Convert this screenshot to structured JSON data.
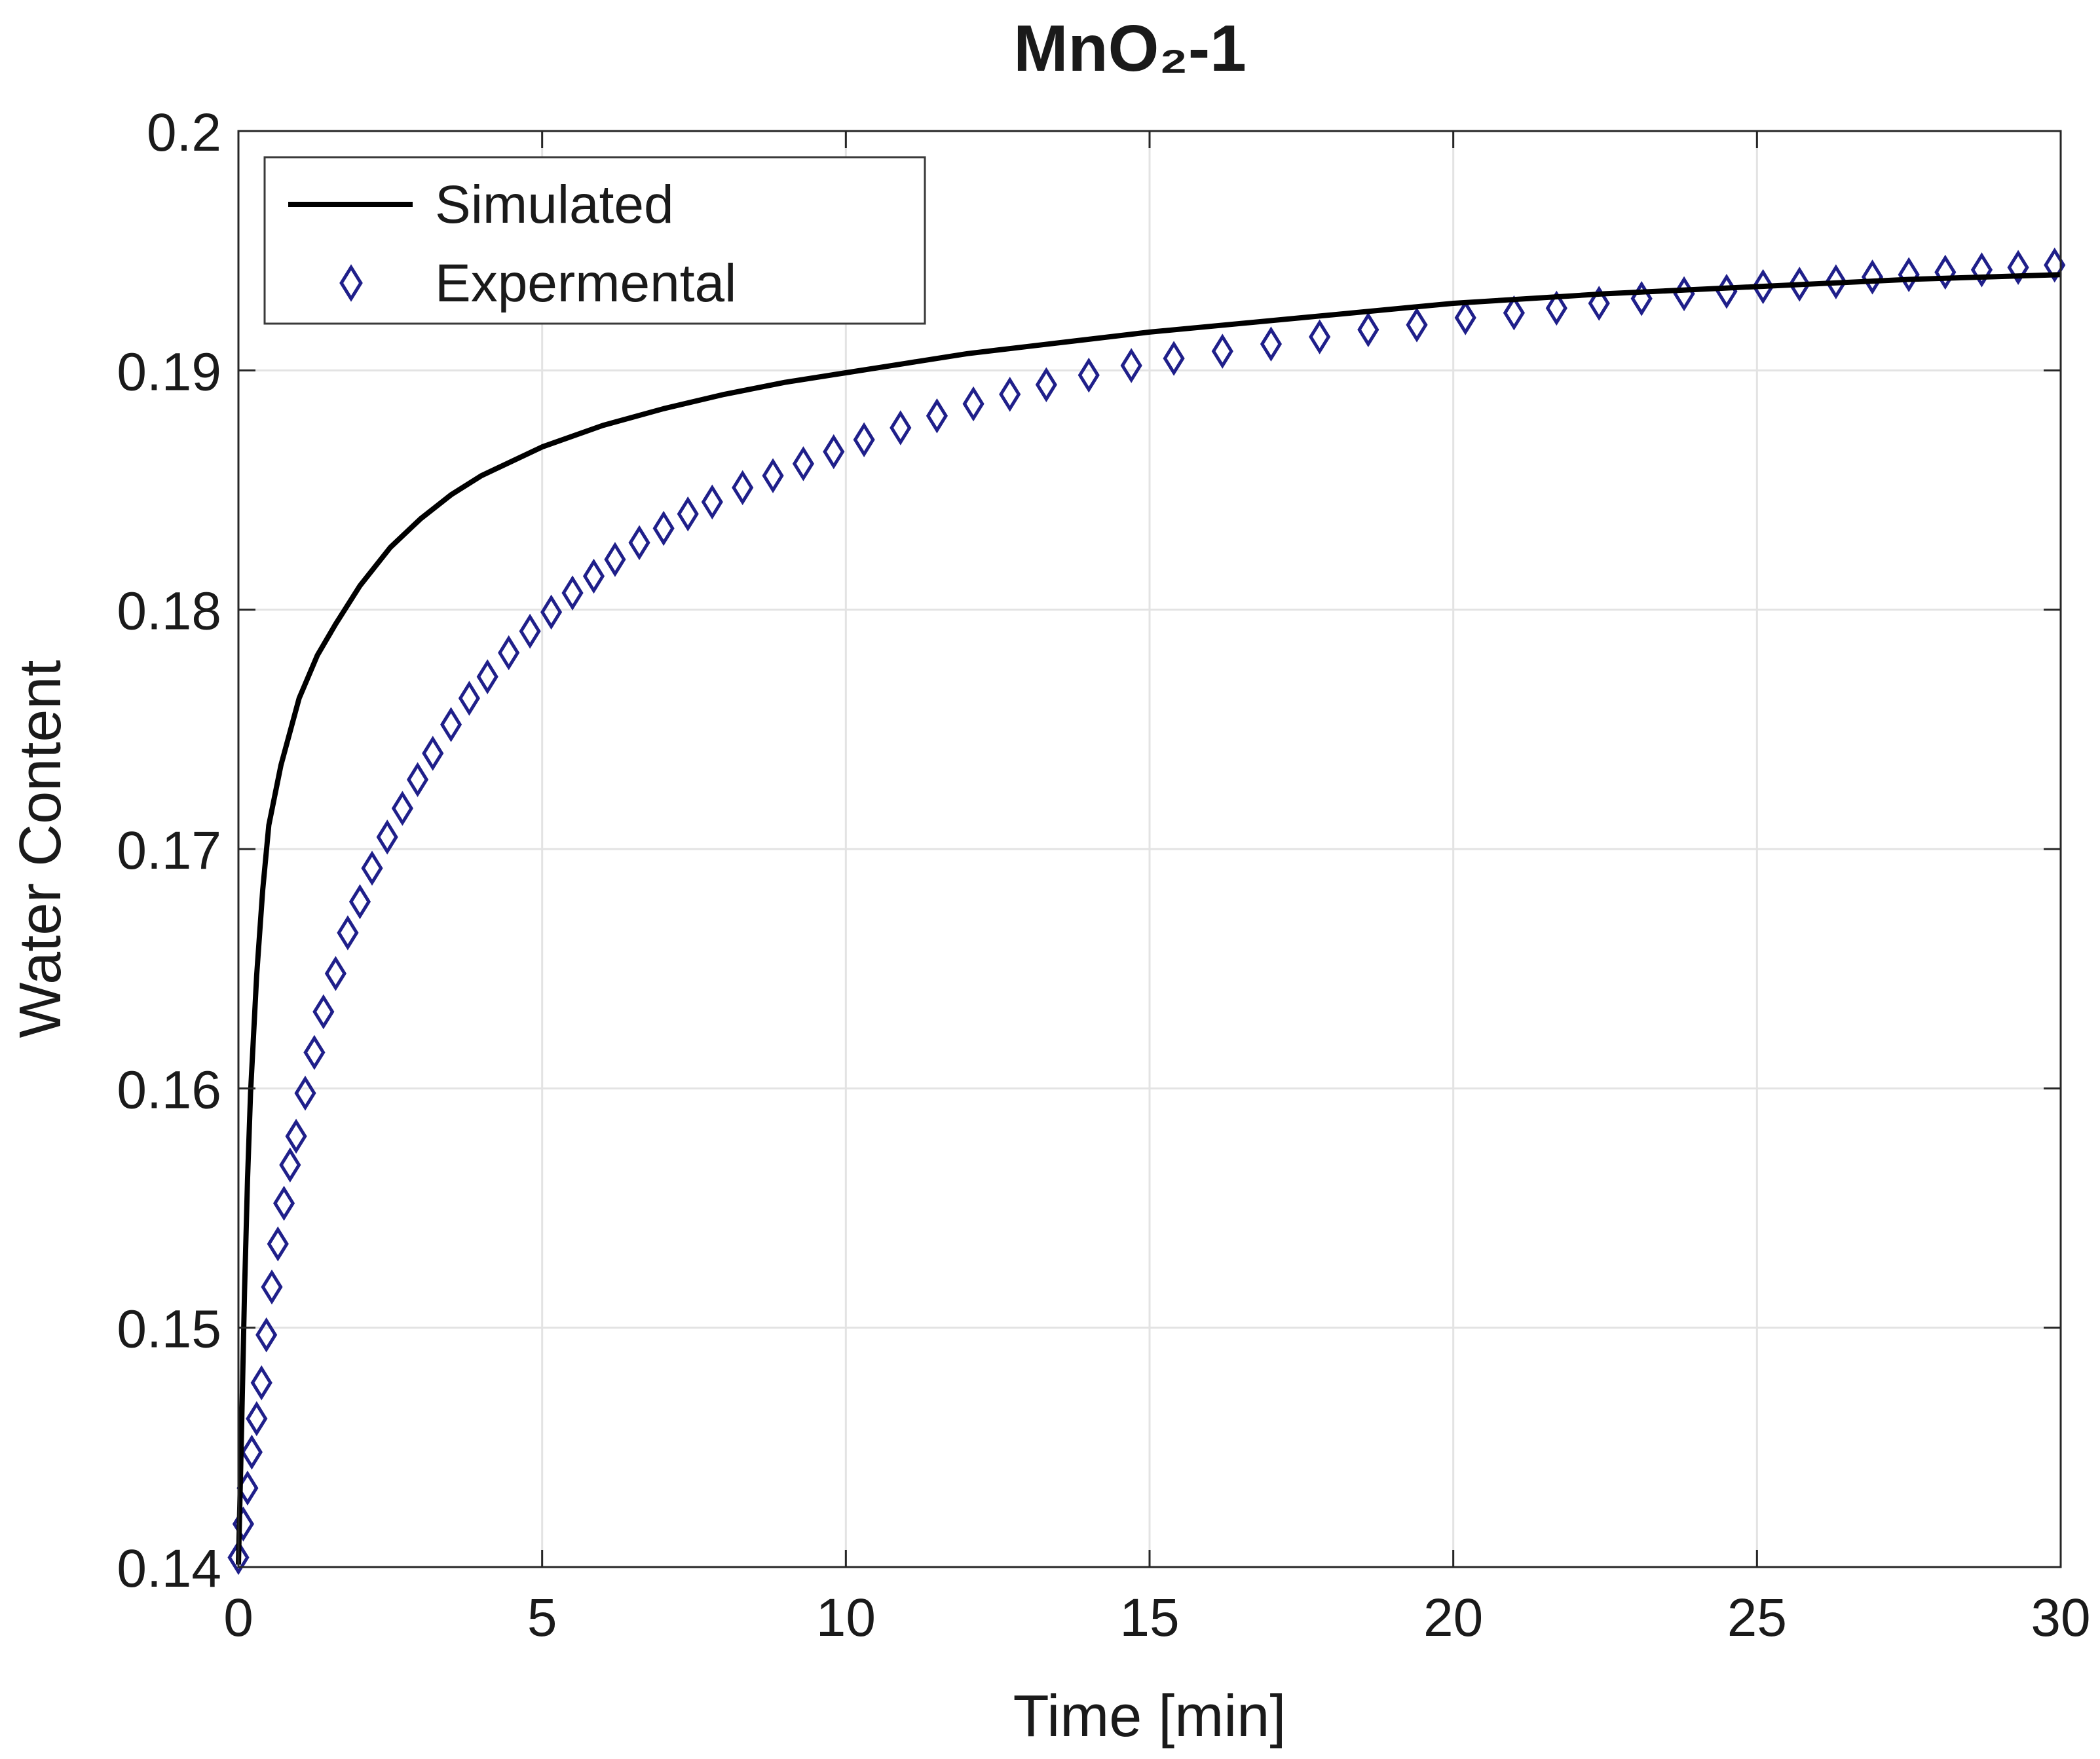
{
  "chart_data": {
    "type": "line",
    "title": "MnO₂-1",
    "xlabel": "Time [min]",
    "ylabel": "Water Content",
    "xlim": [
      0,
      30
    ],
    "ylim": [
      0.14,
      0.2
    ],
    "x_ticks": [
      "0",
      "5",
      "10",
      "15",
      "20",
      "25",
      "30"
    ],
    "y_ticks": [
      "0.14",
      "0.15",
      "0.16",
      "0.17",
      "0.18",
      "0.19",
      "0.2"
    ],
    "grid": true,
    "legend_position": "top-left",
    "series": [
      {
        "name": "Simulated",
        "style": "line",
        "color": "#000000",
        "x": [
          0,
          0.05,
          0.1,
          0.15,
          0.2,
          0.3,
          0.4,
          0.5,
          0.7,
          1.0,
          1.3,
          1.6,
          2.0,
          2.5,
          3.0,
          3.5,
          4.0,
          5.0,
          6.0,
          7.0,
          8.0,
          9.0,
          10.0,
          11.0,
          12.0,
          13.0,
          15.0,
          17.5,
          20.0,
          22.5,
          25.0,
          27.5,
          30.0
        ],
        "y": [
          0.1401,
          0.1455,
          0.1515,
          0.1562,
          0.1598,
          0.1647,
          0.1683,
          0.171,
          0.1735,
          0.1763,
          0.1781,
          0.1794,
          0.181,
          0.1826,
          0.1838,
          0.1848,
          0.1856,
          0.1868,
          0.1877,
          0.1884,
          0.189,
          0.1895,
          0.1899,
          0.1903,
          0.1907,
          0.191,
          0.1916,
          0.1922,
          0.1928,
          0.1932,
          0.1935,
          0.1938,
          0.194
        ]
      },
      {
        "name": "Expermental",
        "style": "markers",
        "marker": "diamond",
        "color": "#1f1f8a",
        "x": [
          0.0,
          0.08,
          0.15,
          0.22,
          0.3,
          0.38,
          0.46,
          0.55,
          0.65,
          0.75,
          0.85,
          0.95,
          1.1,
          1.25,
          1.4,
          1.6,
          1.8,
          2.0,
          2.2,
          2.45,
          2.7,
          2.95,
          3.2,
          3.5,
          3.8,
          4.1,
          4.45,
          4.8,
          5.15,
          5.5,
          5.85,
          6.2,
          6.6,
          7.0,
          7.4,
          7.8,
          8.3,
          8.8,
          9.3,
          9.8,
          10.3,
          10.9,
          11.5,
          12.1,
          12.7,
          13.3,
          14.0,
          14.7,
          15.4,
          16.2,
          17.0,
          17.8,
          18.6,
          19.4,
          20.2,
          21.0,
          21.7,
          22.4,
          23.1,
          23.8,
          24.5,
          25.1,
          25.7,
          26.3,
          26.9,
          27.5,
          28.1,
          28.7,
          29.3,
          29.9
        ],
        "y": [
          0.1404,
          0.1418,
          0.1433,
          0.1448,
          0.1462,
          0.1477,
          0.1497,
          0.1517,
          0.1535,
          0.1552,
          0.1568,
          0.158,
          0.1598,
          0.1615,
          0.1632,
          0.1648,
          0.1665,
          0.1678,
          0.1692,
          0.1705,
          0.1717,
          0.1729,
          0.174,
          0.1752,
          0.1763,
          0.1772,
          0.1782,
          0.1791,
          0.1799,
          0.1807,
          0.1814,
          0.1821,
          0.1828,
          0.1834,
          0.184,
          0.1845,
          0.1851,
          0.1856,
          0.1861,
          0.1866,
          0.1871,
          0.1876,
          0.1881,
          0.1886,
          0.189,
          0.1894,
          0.1898,
          0.1902,
          0.1905,
          0.1908,
          0.1911,
          0.1914,
          0.1917,
          0.1919,
          0.1922,
          0.1924,
          0.1926,
          0.1928,
          0.193,
          0.1932,
          0.1933,
          0.1935,
          0.1936,
          0.1937,
          0.1939,
          0.194,
          0.1941,
          0.1942,
          0.1943,
          0.1944
        ]
      }
    ]
  }
}
